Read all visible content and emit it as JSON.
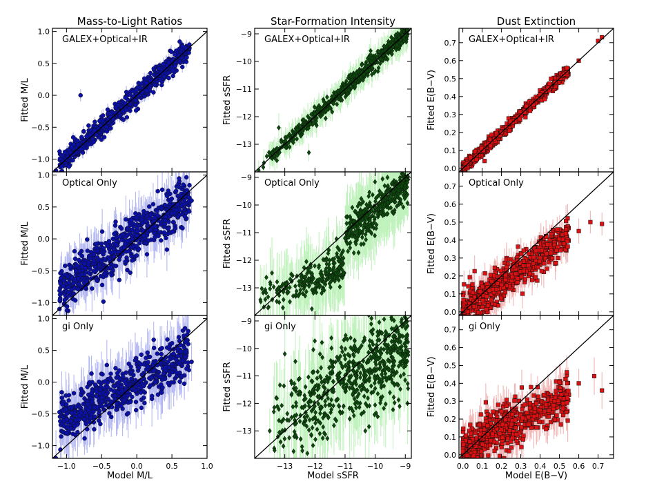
{
  "chart_data": [
    {
      "type": "scatter",
      "title": "Mass-to-Light Ratios",
      "xlabel": "Model M/L",
      "ylabel": "Fitted M/L",
      "xlim": [
        -1.2,
        1.0
      ],
      "ylim": [
        -1.2,
        1.05
      ],
      "xticks": [
        "−1.0",
        "−0.5",
        "0.0",
        "0.5",
        "1.0"
      ],
      "yticks": [
        "−1.0",
        "−0.5",
        "0.0",
        "0.5",
        "1.0"
      ],
      "marker": "circle",
      "point_color": "#0a10a8",
      "error_color": "#a8acf0",
      "panels": [
        {
          "label": "GALEX+Optical+IR",
          "scatter": 0.08,
          "slope": 1.0,
          "offset": 0.0,
          "err": 0.07,
          "points": [
            [
              -0.9,
              -0.92
            ],
            [
              -0.6,
              -0.55
            ],
            [
              -0.3,
              -0.28
            ],
            [
              0.0,
              0.02
            ],
            [
              0.3,
              0.31
            ],
            [
              0.6,
              0.62
            ],
            [
              0.75,
              0.74
            ],
            [
              -1.15,
              -1.18
            ],
            [
              -0.8,
              0.0
            ]
          ]
        },
        {
          "label": "Optical Only",
          "scatter": 0.18,
          "slope": 0.75,
          "offset": 0.05,
          "err": 0.25,
          "points": [
            [
              -0.9,
              -0.7
            ],
            [
              -0.5,
              -0.35
            ],
            [
              0.0,
              0.05
            ],
            [
              0.5,
              0.4
            ],
            [
              0.78,
              0.6
            ],
            [
              -1.1,
              -1.1
            ]
          ]
        },
        {
          "label": "gi Only",
          "label_math": "gi",
          "label_rest": " Only",
          "scatter": 0.18,
          "slope": 0.55,
          "offset": 0.0,
          "err": 0.3,
          "points": [
            [
              -1.0,
              -0.8
            ],
            [
              -0.5,
              -0.3
            ],
            [
              0.0,
              0.0
            ],
            [
              0.5,
              0.28
            ],
            [
              0.78,
              0.32
            ],
            [
              -1.15,
              -1.2
            ]
          ]
        }
      ]
    },
    {
      "type": "scatter",
      "title": "Star-Formation Intensity",
      "xlabel": "Model sSFR",
      "ylabel": "Fitted sSFR",
      "xlim": [
        -14.0,
        -8.8
      ],
      "ylim": [
        -14.0,
        -8.8
      ],
      "xticks": [
        "−13",
        "−12",
        "−11",
        "−10",
        "−9"
      ],
      "yticks": [
        "−13",
        "−12",
        "−11",
        "−10",
        "−9"
      ],
      "marker": "diamond",
      "point_color": "#0c4a0c",
      "error_color": "#b6f0b2",
      "panels": [
        {
          "label": "GALEX+Optical+IR",
          "scatter": 0.15,
          "slope": 1.0,
          "offset": 0.0,
          "err": 0.35,
          "points": [
            [
              -13.5,
              -13.4
            ],
            [
              -12.0,
              -11.9
            ],
            [
              -11.0,
              -10.95
            ],
            [
              -10.0,
              -10.0
            ],
            [
              -9.0,
              -9.05
            ],
            [
              -13.2,
              -12.4
            ],
            [
              -12.2,
              -13.3
            ]
          ]
        },
        {
          "label": "Optical Only",
          "scatter": 0.3,
          "slope": 1.0,
          "offset": 0.0,
          "err": 0.9,
          "points": [
            [
              -13.8,
              -13.5
            ],
            [
              -12.5,
              -13.2
            ],
            [
              -11.5,
              -12.6
            ],
            [
              -11.0,
              -11.2
            ],
            [
              -10.0,
              -10.1
            ],
            [
              -9.0,
              -9.3
            ]
          ]
        },
        {
          "label": "gi Only",
          "label_math": "gi",
          "label_rest": " Only",
          "scatter": 0.6,
          "slope": 1.0,
          "offset": 0.0,
          "err": 1.1,
          "points": [
            [
              -13.5,
              -13.0
            ],
            [
              -12.0,
              -12.5
            ],
            [
              -11.0,
              -11.5
            ],
            [
              -10.0,
              -10.5
            ],
            [
              -9.2,
              -9.5
            ],
            [
              -13.0,
              -10.2
            ]
          ]
        }
      ]
    },
    {
      "type": "scatter",
      "title": "Dust Extinction",
      "xlabel": "Model E(B−V)",
      "xlabel_plain": "Model ",
      "xlabel_math": "E(B−V)",
      "ylabel": "Fitted E(B−V)",
      "ylabel_plain": "Fitted ",
      "ylabel_math": "E(B−V)",
      "xlim": [
        -0.02,
        0.78
      ],
      "ylim": [
        -0.02,
        0.78
      ],
      "xticks": [
        "0.0",
        "0.1",
        "0.2",
        "0.3",
        "0.4",
        "0.5",
        "0.6",
        "0.7"
      ],
      "yticks": [
        "0.0",
        "0.1",
        "0.2",
        "0.3",
        "0.4",
        "0.5",
        "0.6",
        "0.7"
      ],
      "marker": "square",
      "point_color": "#dd1111",
      "error_color": "#f0a8a8",
      "panels": [
        {
          "label": "GALEX+Optical+IR",
          "scatter": 0.015,
          "slope": 1.0,
          "offset": 0.0,
          "err": 0.015,
          "points": [
            [
              0.0,
              0.0
            ],
            [
              0.2,
              0.2
            ],
            [
              0.4,
              0.41
            ],
            [
              0.6,
              0.6
            ],
            [
              0.7,
              0.71
            ],
            [
              0.72,
              0.73
            ]
          ]
        },
        {
          "label": "Optical Only",
          "scatter": 0.05,
          "slope": 0.78,
          "offset": 0.0,
          "err": 0.06,
          "points": [
            [
              0.0,
              0.01
            ],
            [
              0.2,
              0.15
            ],
            [
              0.4,
              0.3
            ],
            [
              0.6,
              0.45
            ],
            [
              0.66,
              0.5
            ],
            [
              0.72,
              0.49
            ]
          ]
        },
        {
          "label": "gi Only",
          "label_math": "gi",
          "label_rest": " Only",
          "scatter": 0.06,
          "slope": 0.55,
          "offset": 0.03,
          "err": 0.08,
          "points": [
            [
              0.0,
              0.02
            ],
            [
              0.2,
              0.14
            ],
            [
              0.4,
              0.25
            ],
            [
              0.6,
              0.4
            ],
            [
              0.68,
              0.44
            ],
            [
              0.72,
              0.36
            ]
          ]
        }
      ]
    }
  ]
}
